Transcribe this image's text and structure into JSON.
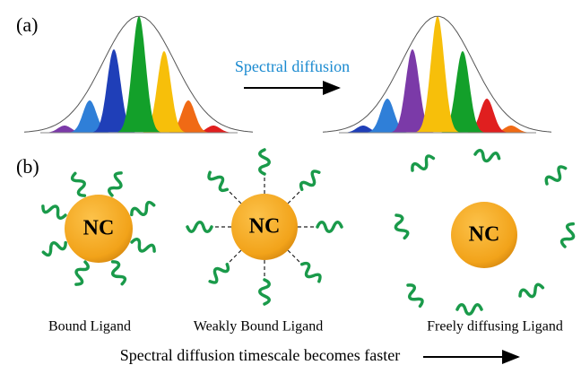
{
  "panel_a": {
    "label": "(a)",
    "arrow_label": "Spectral diffusion"
  },
  "panel_b": {
    "label": "(b)",
    "items": [
      {
        "core": "NC",
        "caption": "Bound Ligand"
      },
      {
        "core": "NC",
        "caption": "Weakly Bound Ligand"
      },
      {
        "core": "NC",
        "caption": "Freely diffusing Ligand"
      }
    ],
    "footer": "Spectral diffusion timescale becomes faster"
  }
}
